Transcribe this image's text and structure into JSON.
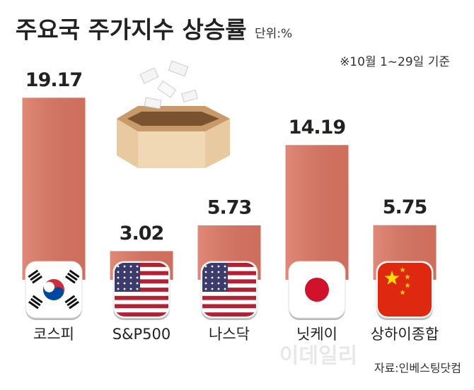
{
  "chart_data": {
    "type": "bar",
    "title": "주요국 주가지수 상승률",
    "subtitle": "단위:%",
    "note": "※10월 1~29일 기준",
    "categories": [
      "코스피",
      "S&P500",
      "나스닥",
      "닛케이",
      "상하이종합"
    ],
    "values": [
      19.17,
      3.02,
      5.73,
      14.19,
      5.75
    ],
    "color": "#db7461",
    "source": "자료:인베스팅닷컴",
    "watermark": "이데일리"
  }
}
